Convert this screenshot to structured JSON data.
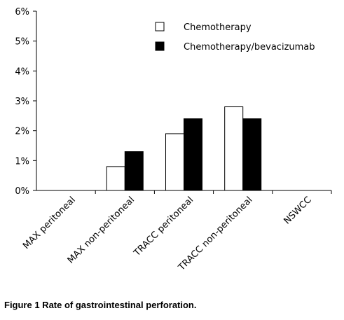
{
  "caption": "Figure 1  Rate of gastrointestinal perforation.",
  "chart_data": {
    "type": "bar",
    "categories": [
      "MAX peritoneal",
      "MAX non-peritoneal",
      "TRACC peritoneal",
      "TRACC non-peritoneal",
      "NSWCC"
    ],
    "series": [
      {
        "name": "Chemotherapy",
        "values": [
          0,
          0.8,
          1.9,
          2.8,
          0
        ],
        "color": "#ffffff"
      },
      {
        "name": "Chemotherapy/bevacizumab",
        "values": [
          0,
          1.3,
          2.4,
          2.4,
          0
        ],
        "color": "#000000"
      }
    ],
    "yticks": [
      "0%",
      "1%",
      "2%",
      "3%",
      "4%",
      "5%",
      "6%"
    ],
    "ylim": [
      0,
      6
    ],
    "grid": false,
    "legend_position": "top-right"
  }
}
